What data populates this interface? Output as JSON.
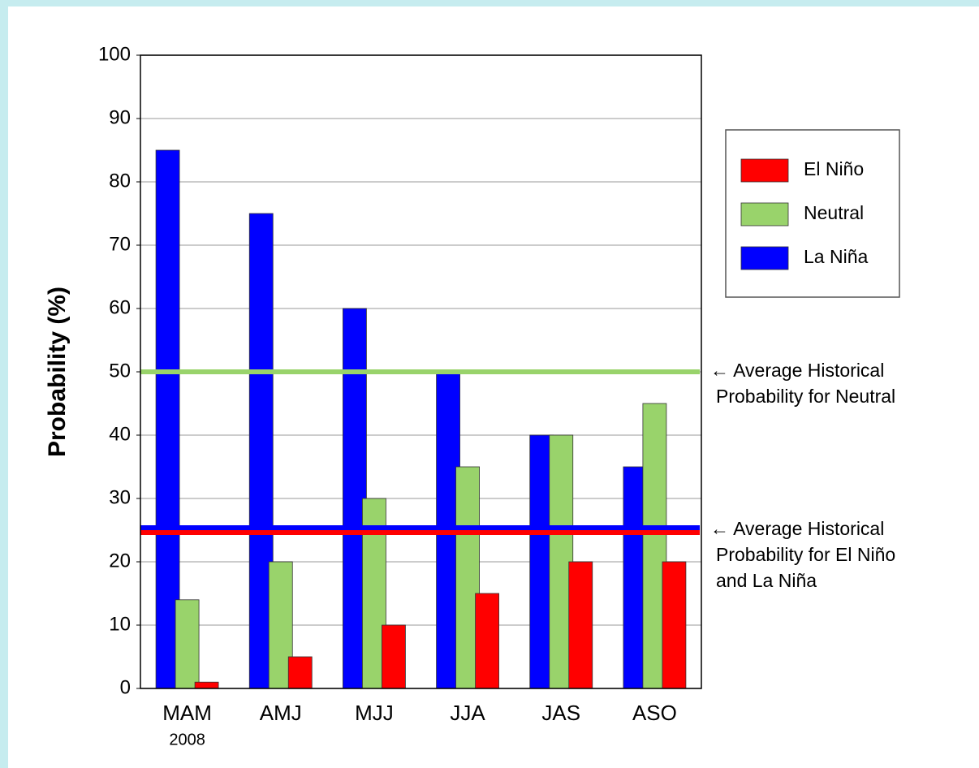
{
  "chart_data": {
    "type": "bar",
    "ylabel": "Probability (%)",
    "categories": [
      "MAM",
      "AMJ",
      "MJJ",
      "JJA",
      "JAS",
      "ASO"
    ],
    "x_sublabel": "2008",
    "series": [
      {
        "name": "El Niño",
        "color": "#ff0000",
        "values": [
          1,
          5,
          10,
          15,
          20,
          20
        ]
      },
      {
        "name": "Neutral",
        "color": "#99d36b",
        "values": [
          14,
          20,
          30,
          35,
          40,
          45
        ]
      },
      {
        "name": "La Niña",
        "color": "#0000ff",
        "values": [
          85,
          75,
          60,
          50,
          40,
          35
        ]
      }
    ],
    "ylim": [
      0,
      100
    ],
    "yticks": [
      0,
      10,
      20,
      30,
      40,
      50,
      60,
      70,
      80,
      90,
      100
    ],
    "grid": true,
    "legend": "upper right",
    "reference_lines": [
      {
        "value": 50,
        "color": "#99d36b"
      },
      {
        "value": 25,
        "color": "#0000ff"
      },
      {
        "value": 25,
        "color": "#ff0000"
      }
    ],
    "annotations": [
      {
        "value": 50,
        "lines": [
          "← Average Historical",
          "Probability for Neutral"
        ]
      },
      {
        "value": 25,
        "lines": [
          "← Average Historical",
          "Probability for El Niño",
          "and La Niña"
        ]
      }
    ]
  }
}
